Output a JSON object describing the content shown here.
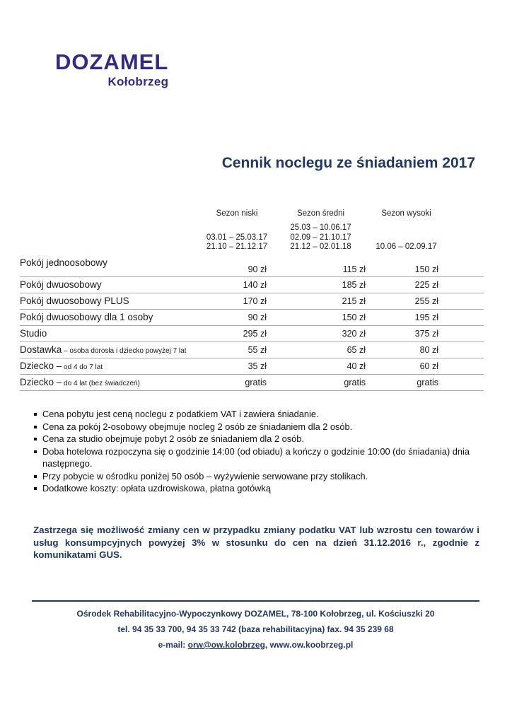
{
  "logo": {
    "name": "DOZAMEL",
    "city": "Kołobrzeg"
  },
  "title": "Cennik noclegu ze śniadaniem 2017",
  "table": {
    "season_headers": [
      "Sezon niski",
      "Sezon średni",
      "Sezon wysoki"
    ],
    "season_dates": [
      [
        "03.01 – 25.03.17",
        "21.10 – 21.12.17"
      ],
      [
        "25.03 – 10.06.17",
        "02.09 – 21.10.17",
        "21.12 – 02.01.18"
      ],
      [
        "10.06 – 02.09.17"
      ]
    ],
    "rows": [
      {
        "label": "Pokój jednoosobowy",
        "note": "",
        "prices": [
          "90 zł",
          "115 zł",
          "150 zł"
        ]
      },
      {
        "label": "Pokój dwuosobowy",
        "note": "",
        "prices": [
          "140 zł",
          "185 zł",
          "225 zł"
        ]
      },
      {
        "label": "Pokój dwuosobowy PLUS",
        "note": "",
        "prices": [
          "170 zł",
          "215 zł",
          "255 zł"
        ]
      },
      {
        "label": "Pokój dwuosobowy dla 1 osoby",
        "note": "",
        "prices": [
          "90 zł",
          "150 zł",
          "195 zł"
        ]
      },
      {
        "label": "Studio",
        "note": "",
        "prices": [
          "295 zł",
          "320 zł",
          "375 zł"
        ]
      },
      {
        "label": "Dostawka",
        "note": "– osoba dorosła i dziecko powyżej 7 lat",
        "prices": [
          "55 zł",
          "65 zł",
          "80 zł"
        ]
      },
      {
        "label": "Dziecko –",
        "note": "od 4 do 7 lat",
        "prices": [
          "35 zł",
          "40 zł",
          "60 zł"
        ]
      },
      {
        "label": "Dziecko –",
        "note": "do 4 lat (bez świadczeń)",
        "prices": [
          "gratis",
          "gratis",
          "gratis"
        ]
      }
    ]
  },
  "notes": [
    "Cena pobytu jest ceną  noclegu z podatkiem VAT i zawiera śniadanie.",
    "Cena za pokój 2-osobowy obejmuje nocleg 2 osób ze śniadaniem dla 2 osób.",
    "Cena za studio obejmuje pobyt 2 osób ze śniadaniem dla 2 osób.",
    "Doba hotelowa rozpoczyna się o godzinie 14:00 (od obiadu) a kończy o godzinie 10:00 (do śniadania) dnia następnego.",
    "Przy pobycie w ośrodku poniżej 50 osób – wyżywienie serwowane przy stolikach.",
    "Dodatkowe koszty: opłata uzdrowiskowa, płatna gotówką"
  ],
  "disclaimer": "Zastrzega się możliwość zmiany cen w przypadku zmiany podatku VAT lub wzrostu cen towarów i usług konsumpcyjnych powyżej 3% w stosunku do cen na dzień 31.12.2016 r., zgodnie z komunikatami GUS.",
  "footer": {
    "line1": "Ośrodek Rehabilitacyjno-Wypoczynkowy DOZAMEL,  78-100 Kołobrzeg, ul. Kościuszki 20",
    "line2": "tel. 94 35 33 700, 94 35 33 742 (baza rehabilitacyjna) fax. 94 35 239 68",
    "email_prefix": "e-mail: ",
    "email_link": "orw@ow.kolobrzeg",
    "email_suffix": ", www.ow.koobrzeg.pl"
  },
  "colors": {
    "navy": "#1f3864",
    "logo": "#322b84",
    "line": "#a8a8a8",
    "ink": "#1a1a1a"
  }
}
